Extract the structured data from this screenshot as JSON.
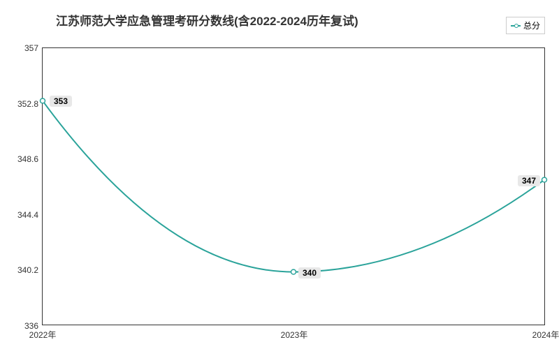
{
  "chart": {
    "type": "line",
    "title": "江苏师范大学应急管理考研分数线(含2022-2024历年复试)",
    "title_fontsize": 17,
    "title_color": "#333333",
    "legend": {
      "label": "总分",
      "color": "#2aa39a"
    },
    "background_color": "#ffffff",
    "plot_border_color": "#333333",
    "x": {
      "categories": [
        "2022年",
        "2023年",
        "2024年"
      ],
      "label_fontsize": 12
    },
    "y": {
      "min": 336,
      "max": 357,
      "ticks": [
        336,
        340.2,
        344.4,
        348.6,
        352.8,
        357
      ],
      "label_fontsize": 12
    },
    "series": {
      "name": "总分",
      "color": "#2aa39a",
      "line_width": 2,
      "marker": {
        "shape": "circle",
        "size": 5,
        "border_color": "#2aa39a",
        "fill": "#ffffff"
      },
      "data": [
        353,
        340,
        347
      ],
      "data_labels": [
        "353",
        "340",
        "347"
      ],
      "label_bg": "#e8e8e8"
    },
    "grid": {
      "show": false
    }
  }
}
